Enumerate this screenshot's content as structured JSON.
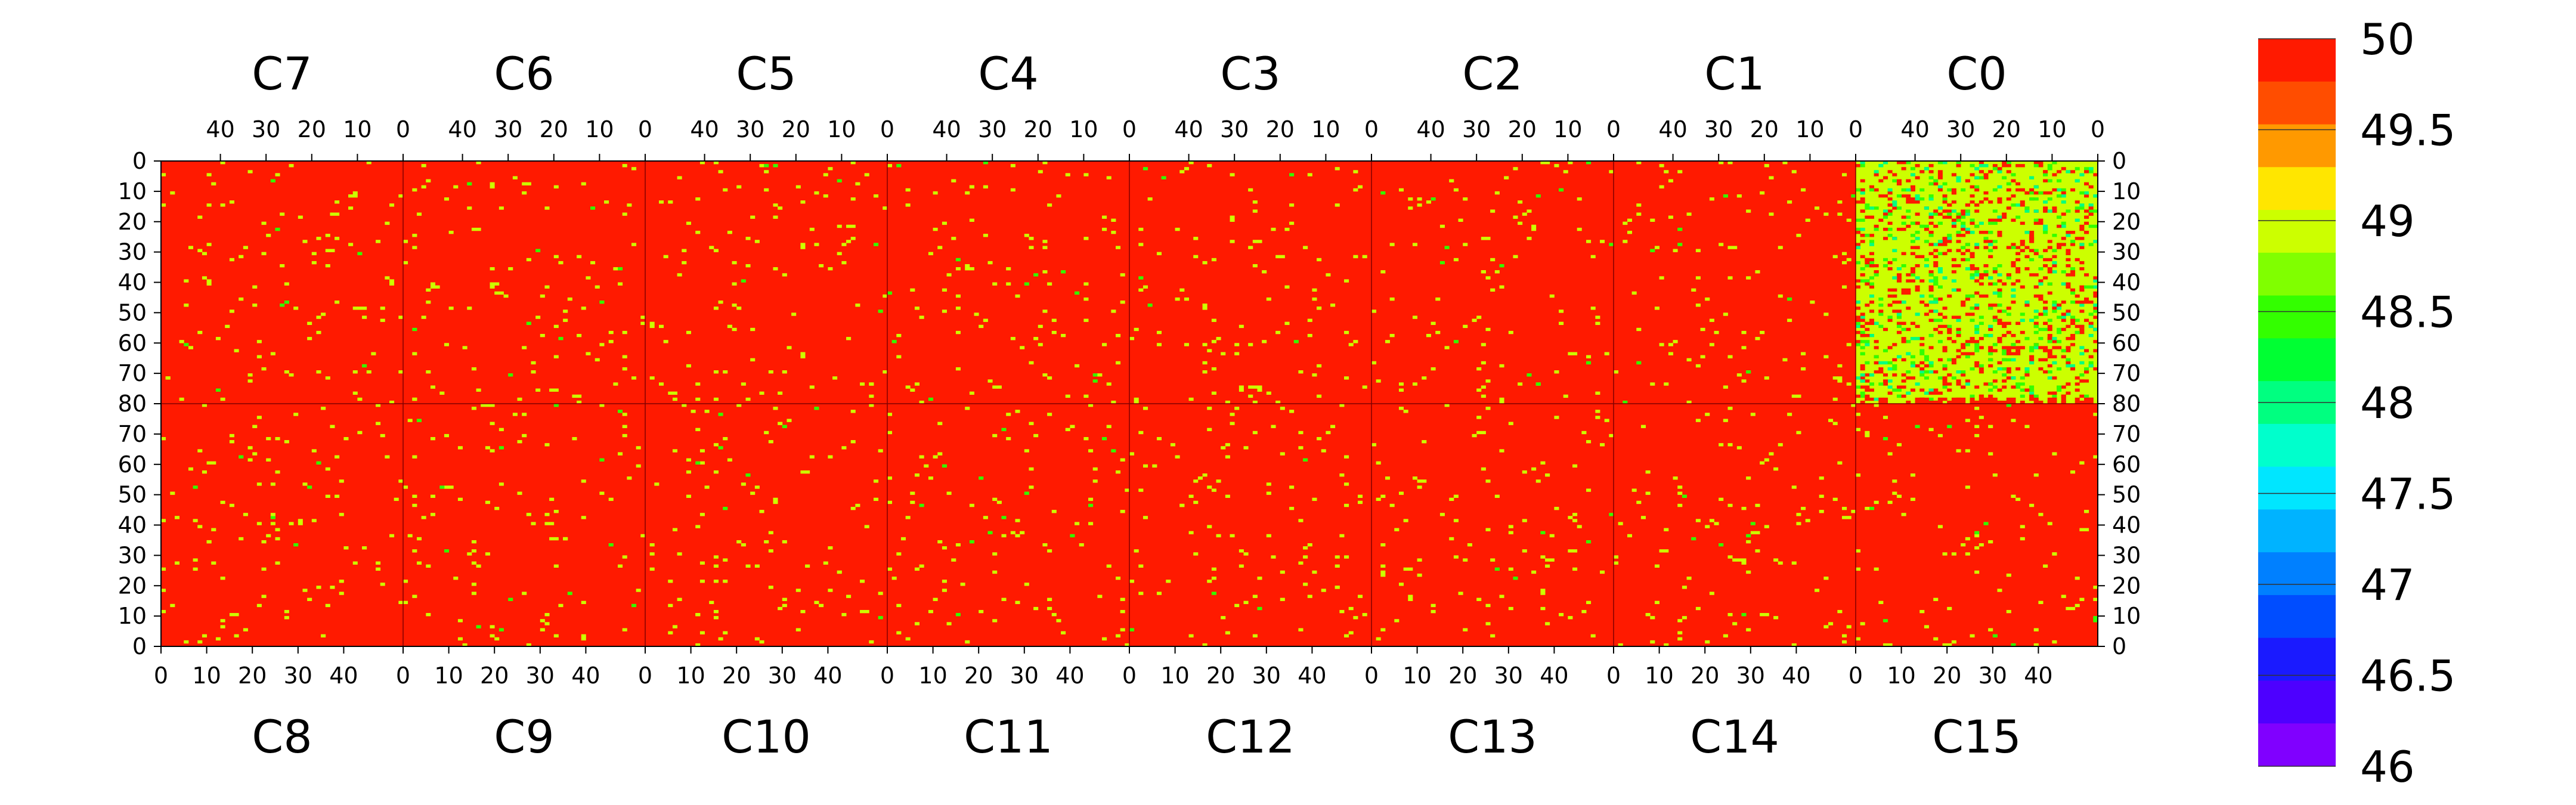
{
  "chart_data": {
    "type": "heatmap",
    "title": "",
    "colorbar": {
      "min": 46,
      "max": 50,
      "tick_labels": [
        "50",
        "49.5",
        "49",
        "48.5",
        "48",
        "47.5",
        "47",
        "46.5",
        "46"
      ],
      "tick_values": [
        50,
        49.5,
        49,
        48.5,
        48,
        47.5,
        47,
        46.5,
        46
      ],
      "colors": [
        "#ff1a00",
        "#ff4d00",
        "#ff9900",
        "#ffe600",
        "#ccff00",
        "#80ff00",
        "#33ff00",
        "#00ff33",
        "#00ff80",
        "#00ffcc",
        "#00e6ff",
        "#00b3ff",
        "#0080ff",
        "#004dff",
        "#1a1aff",
        "#4d00ff",
        "#8000ff"
      ]
    },
    "top_row": {
      "chips": [
        "C7",
        "C6",
        "C5",
        "C4",
        "C3",
        "C2",
        "C1",
        "C0"
      ],
      "x_tick_labels": [
        "40",
        "30",
        "20",
        "10",
        "0"
      ],
      "x_tick_values": [
        40,
        30,
        20,
        10,
        0
      ],
      "x_range": [
        53,
        0
      ]
    },
    "bottom_row": {
      "chips": [
        "C8",
        "C9",
        "C10",
        "C11",
        "C12",
        "C13",
        "C14",
        "C15"
      ],
      "x_tick_labels": [
        "0",
        "10",
        "20",
        "30",
        "40"
      ],
      "x_tick_values": [
        0,
        10,
        20,
        30,
        40
      ],
      "x_range": [
        0,
        53
      ]
    },
    "y_tick_labels_top": [
      "0",
      "10",
      "20",
      "30",
      "40",
      "50",
      "60",
      "70",
      "80"
    ],
    "y_tick_labels_bottom": [
      "70",
      "60",
      "50",
      "40",
      "30",
      "20",
      "10",
      "0"
    ],
    "y_range": [
      0,
      80
    ],
    "cell_summary": {
      "dominant_value": 50,
      "chips_mostly_value_50": [
        "C1",
        "C2",
        "C3",
        "C4",
        "C5",
        "C6",
        "C7",
        "C8",
        "C9",
        "C10",
        "C11",
        "C12",
        "C13",
        "C14",
        "C15"
      ],
      "chip_mostly_value_49": "C0",
      "scattered_values": [
        49,
        48.5,
        48
      ]
    }
  }
}
